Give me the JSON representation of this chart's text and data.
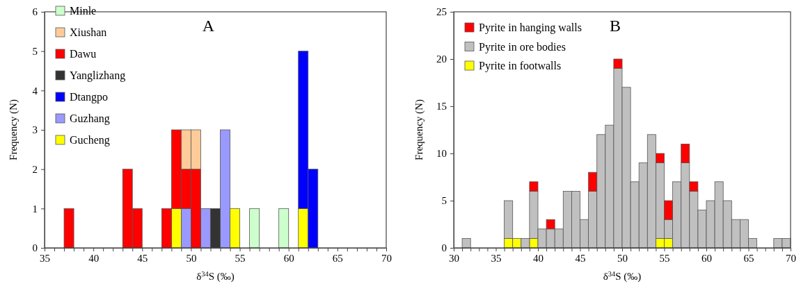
{
  "chart_data": [
    {
      "type": "bar",
      "title": "A",
      "xlabel": "δ$^{34}$S (‰)",
      "ylabel": "Frequency (N)",
      "stacked": true,
      "legend": "top left",
      "grid": false,
      "x": [
        35.5,
        36.5,
        37.5,
        38.5,
        39.5,
        40.5,
        41.5,
        42.5,
        43.5,
        44.5,
        45.5,
        46.5,
        47.5,
        48.5,
        49.5,
        50.5,
        51.5,
        52.5,
        53.5,
        54.5,
        55.5,
        56.5,
        57.5,
        58.5,
        59.5,
        60.5,
        61.5,
        62.5,
        63.5,
        64.5,
        65.5,
        66.5,
        67.5,
        68.5,
        69.5
      ],
      "series": [
        {
          "name": "Gucheng",
          "color": "#ffff00",
          "values": [
            0,
            0,
            0,
            0,
            0,
            0,
            0,
            0,
            0,
            0,
            0,
            0,
            0,
            1,
            0,
            0,
            0,
            0,
            0,
            1,
            0,
            0,
            0,
            0,
            0,
            0,
            1,
            0,
            0,
            0,
            0,
            0,
            0,
            0,
            0
          ]
        },
        {
          "name": "Guzhang",
          "color": "#9999ff",
          "values": [
            0,
            0,
            0,
            0,
            0,
            0,
            0,
            0,
            0,
            0,
            0,
            0,
            0,
            0,
            1,
            0,
            1,
            0,
            3,
            0,
            0,
            0,
            0,
            0,
            0,
            0,
            0,
            0,
            0,
            0,
            0,
            0,
            0,
            0,
            0
          ]
        },
        {
          "name": "Dtangpo",
          "color": "#0000ff",
          "values": [
            0,
            0,
            0,
            0,
            0,
            0,
            0,
            0,
            0,
            0,
            0,
            0,
            0,
            0,
            0,
            0,
            0,
            0,
            0,
            0,
            0,
            0,
            0,
            0,
            0,
            0,
            4,
            2,
            0,
            0,
            0,
            0,
            0,
            0,
            0
          ]
        },
        {
          "name": "Yanglizhang",
          "color": "#333333",
          "values": [
            0,
            0,
            0,
            0,
            0,
            0,
            0,
            0,
            0,
            0,
            0,
            0,
            0,
            0,
            0,
            0,
            0,
            1,
            0,
            0,
            0,
            0,
            0,
            0,
            0,
            0,
            0,
            0,
            0,
            0,
            0,
            0,
            0,
            0,
            0
          ]
        },
        {
          "name": "Dawu",
          "color": "#ff0000",
          "values": [
            0,
            0,
            1,
            0,
            0,
            0,
            0,
            0,
            2,
            1,
            0,
            0,
            1,
            2,
            1,
            2,
            0,
            0,
            0,
            0,
            0,
            0,
            0,
            0,
            0,
            0,
            0,
            0,
            0,
            0,
            0,
            0,
            0,
            0,
            0
          ]
        },
        {
          "name": "Xiushan",
          "color": "#ffcc99",
          "values": [
            0,
            0,
            0,
            0,
            0,
            0,
            0,
            0,
            0,
            0,
            0,
            0,
            0,
            0,
            1,
            1,
            0,
            0,
            0,
            0,
            0,
            0,
            0,
            0,
            0,
            0,
            0,
            0,
            0,
            0,
            0,
            0,
            0,
            0,
            0
          ]
        },
        {
          "name": "Minle",
          "color": "#ccffcc",
          "values": [
            0,
            0,
            0,
            0,
            0,
            0,
            0,
            0,
            0,
            0,
            0,
            0,
            0,
            0,
            0,
            0,
            0,
            0,
            0,
            0,
            0,
            1,
            0,
            0,
            1,
            0,
            0,
            0,
            0,
            0,
            0,
            0,
            0,
            0,
            0
          ]
        }
      ],
      "xlim": [
        35,
        70
      ],
      "xticks": [
        35,
        {
          "value": 36,
          "label": null
        },
        {
          "value": 37,
          "label": null
        },
        {
          "value": 38,
          "label": null
        },
        {
          "value": 39,
          "label": null
        },
        40,
        {
          "value": 41,
          "label": null
        },
        {
          "value": 42,
          "label": null
        },
        {
          "value": 43,
          "label": null
        },
        {
          "value": 44,
          "label": null
        },
        45,
        {
          "value": 46,
          "label": null
        },
        {
          "value": 47,
          "label": null
        },
        {
          "value": 48,
          "label": null
        },
        {
          "value": 49,
          "label": null
        },
        50,
        {
          "value": 51,
          "label": null
        },
        {
          "value": 52,
          "label": null
        },
        {
          "value": 53,
          "label": null
        },
        {
          "value": 54,
          "label": null
        },
        55,
        {
          "value": 56,
          "label": null
        },
        {
          "value": 57,
          "label": null
        },
        {
          "value": 58,
          "label": null
        },
        {
          "value": 59,
          "label": null
        },
        60,
        {
          "value": 61,
          "label": null
        },
        {
          "value": 62,
          "label": null
        },
        {
          "value": 63,
          "label": null
        },
        {
          "value": 64,
          "label": null
        },
        65,
        {
          "value": 66,
          "label": null
        },
        {
          "value": 67,
          "label": null
        },
        {
          "value": 68,
          "label": null
        },
        {
          "value": 69,
          "label": null
        },
        70
      ],
      "ylim": [
        0,
        6
      ],
      "yticks": [
        0,
        1,
        2,
        3,
        4,
        5,
        6
      ]
    },
    {
      "type": "bar",
      "title": "B",
      "xlabel": "δ$^{34}$S (‰)",
      "ylabel": "Frequency (N)",
      "stacked": true,
      "legend": "top left",
      "grid": false,
      "x": [
        30.5,
        31.5,
        32.5,
        33.5,
        34.5,
        35.5,
        36.5,
        37.5,
        38.5,
        39.5,
        40.5,
        41.5,
        42.5,
        43.5,
        44.5,
        45.5,
        46.5,
        47.5,
        48.5,
        49.5,
        50.5,
        51.5,
        52.5,
        53.5,
        54.5,
        55.5,
        56.5,
        57.5,
        58.5,
        59.5,
        60.5,
        61.5,
        62.5,
        63.5,
        64.5,
        65.5,
        66.5,
        67.5,
        68.5,
        69.5
      ],
      "series": [
        {
          "name": "Pyrite in footwalls",
          "color": "#ffff00",
          "values": [
            0,
            0,
            0,
            0,
            0,
            0,
            1,
            1,
            0,
            1,
            0,
            0,
            0,
            0,
            0,
            0,
            0,
            0,
            0,
            0,
            0,
            0,
            0,
            0,
            1,
            1,
            0,
            0,
            0,
            0,
            0,
            0,
            0,
            0,
            0,
            0,
            0,
            0,
            0,
            0
          ]
        },
        {
          "name": "Pyrite in ore bodies",
          "color": "#c0c0c0",
          "values": [
            0,
            1,
            0,
            0,
            0,
            0,
            4,
            0,
            1,
            5,
            2,
            2,
            2,
            6,
            6,
            3,
            6,
            12,
            13,
            19,
            17,
            7,
            9,
            12,
            8,
            2,
            7,
            9,
            6,
            4,
            5,
            7,
            5,
            3,
            3,
            1,
            0,
            0,
            1,
            1
          ]
        },
        {
          "name": "Pyrite in hanging walls",
          "color": "#ff0000",
          "values": [
            0,
            0,
            0,
            0,
            0,
            0,
            0,
            0,
            0,
            1,
            0,
            1,
            0,
            0,
            0,
            0,
            2,
            0,
            0,
            1,
            0,
            0,
            0,
            0,
            1,
            2,
            0,
            2,
            1,
            0,
            0,
            0,
            0,
            0,
            0,
            0,
            0,
            0,
            0,
            0
          ]
        }
      ],
      "xlim": [
        30,
        70
      ],
      "xticks": [
        30,
        {
          "value": 31,
          "label": null
        },
        {
          "value": 32,
          "label": null
        },
        {
          "value": 33,
          "label": null
        },
        {
          "value": 34,
          "label": null
        },
        35,
        {
          "value": 36,
          "label": null
        },
        {
          "value": 37,
          "label": null
        },
        {
          "value": 38,
          "label": null
        },
        {
          "value": 39,
          "label": null
        },
        40,
        {
          "value": 41,
          "label": null
        },
        {
          "value": 42,
          "label": null
        },
        {
          "value": 43,
          "label": null
        },
        {
          "value": 44,
          "label": null
        },
        45,
        {
          "value": 46,
          "label": null
        },
        {
          "value": 47,
          "label": null
        },
        {
          "value": 48,
          "label": null
        },
        {
          "value": 49,
          "label": null
        },
        50,
        {
          "value": 51,
          "label": null
        },
        {
          "value": 52,
          "label": null
        },
        {
          "value": 53,
          "label": null
        },
        {
          "value": 54,
          "label": null
        },
        55,
        {
          "value": 56,
          "label": null
        },
        {
          "value": 57,
          "label": null
        },
        {
          "value": 58,
          "label": null
        },
        {
          "value": 59,
          "label": null
        },
        60,
        {
          "value": 61,
          "label": null
        },
        {
          "value": 62,
          "label": null
        },
        {
          "value": 63,
          "label": null
        },
        {
          "value": 64,
          "label": null
        },
        65,
        {
          "value": 66,
          "label": null
        },
        {
          "value": 67,
          "label": null
        },
        {
          "value": 68,
          "label": null
        },
        {
          "value": 69,
          "label": null
        },
        70
      ],
      "ylim": [
        0,
        25
      ],
      "yticks": [
        0,
        5,
        10,
        15,
        20,
        25
      ]
    }
  ]
}
